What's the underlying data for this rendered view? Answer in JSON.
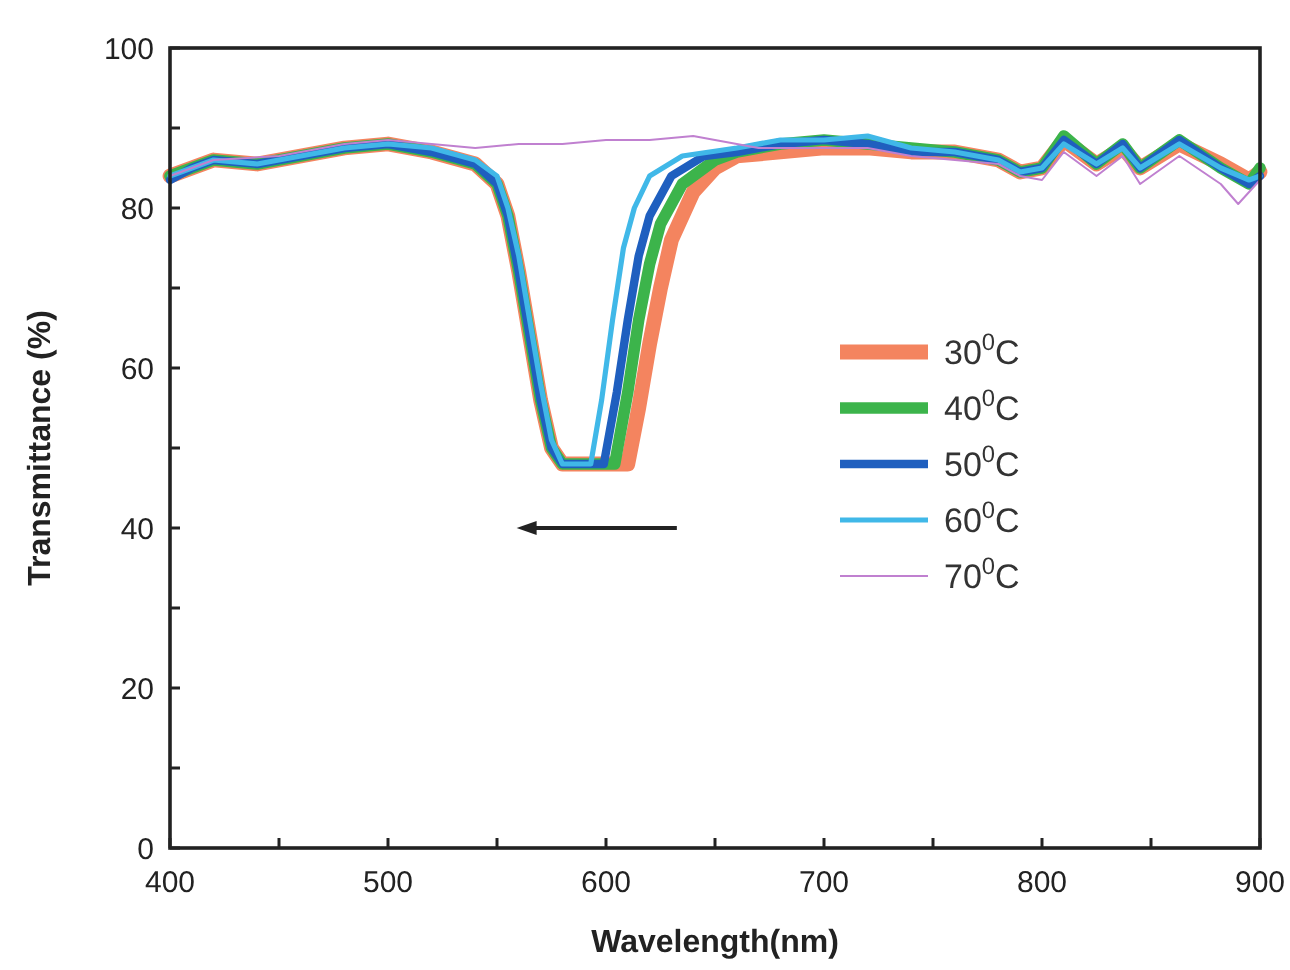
{
  "chart_data": {
    "type": "line",
    "xlabel": "Wavelength(nm)",
    "ylabel": "Transmittance (%)",
    "xlim": [
      400,
      900
    ],
    "ylim": [
      0,
      100
    ],
    "xticks": [
      400,
      {
        "value": 450,
        "label": null
      },
      500,
      {
        "value": 550,
        "label": null
      },
      600,
      {
        "value": 650,
        "label": null
      },
      700,
      {
        "value": 750,
        "label": null
      },
      800,
      {
        "value": 850,
        "label": null
      },
      900
    ],
    "yticks": [
      0,
      {
        "value": 10,
        "label": null
      },
      20,
      {
        "value": 30,
        "label": null
      },
      40,
      {
        "value": 50,
        "label": null
      },
      60,
      {
        "value": 70,
        "label": null
      },
      80,
      {
        "value": 90,
        "label": null
      },
      100
    ],
    "grid": false,
    "legend": "right",
    "line_style": "solid",
    "marker": "none",
    "series": [
      {
        "name": "30$^{0}$C",
        "color": "#f4845f",
        "x": [
          400,
          410,
          420,
          440,
          460,
          480,
          500,
          520,
          540,
          550,
          555,
          560,
          565,
          570,
          575,
          580,
          610,
          615,
          620,
          625,
          630,
          640,
          650,
          660,
          680,
          700,
          720,
          740,
          760,
          780,
          790,
          800,
          810,
          825,
          837,
          845,
          863,
          882,
          895,
          900
        ],
        "values": [
          84,
          85,
          86,
          85.5,
          86.5,
          87.5,
          88,
          87,
          85.5,
          83,
          79,
          72,
          64,
          56,
          50,
          48,
          48,
          55,
          63,
          70,
          76,
          82,
          85,
          86.5,
          87,
          87.5,
          87.5,
          87,
          87,
          86,
          84.5,
          85,
          88.5,
          85.5,
          87.5,
          85,
          88,
          85.5,
          83.5,
          84.5
        ]
      },
      {
        "name": "40$^{0}$C",
        "color": "#3cb44b",
        "x": [
          400,
          410,
          420,
          440,
          460,
          480,
          500,
          520,
          540,
          550,
          555,
          560,
          565,
          570,
          575,
          580,
          604,
          610,
          615,
          620,
          625,
          635,
          650,
          660,
          680,
          700,
          720,
          740,
          760,
          780,
          790,
          800,
          810,
          825,
          837,
          845,
          863,
          882,
          895,
          900
        ],
        "values": [
          84,
          85,
          86,
          85.5,
          86.5,
          87.5,
          88,
          87,
          85.5,
          83,
          79,
          72,
          64,
          56,
          50,
          48,
          48,
          57,
          66,
          73,
          78,
          83,
          86,
          87,
          88,
          88.5,
          88,
          87.5,
          87,
          86,
          84.5,
          85,
          89,
          85.5,
          88,
          85,
          88.5,
          85,
          83,
          85
        ]
      },
      {
        "name": "50$^{0}$C",
        "color": "#1f5fbf",
        "x": [
          400,
          410,
          420,
          440,
          460,
          480,
          500,
          520,
          540,
          550,
          555,
          560,
          565,
          570,
          575,
          580,
          599,
          605,
          610,
          615,
          620,
          630,
          645,
          660,
          680,
          700,
          720,
          740,
          760,
          780,
          790,
          800,
          810,
          825,
          837,
          845,
          863,
          882,
          895,
          900
        ],
        "values": [
          83.5,
          85,
          86,
          85.5,
          86.5,
          87.5,
          88,
          87,
          85.5,
          83,
          79,
          72,
          64,
          56,
          50,
          48,
          48,
          57,
          66,
          74,
          79,
          84,
          86.5,
          87,
          88,
          88.5,
          88,
          87,
          87,
          86,
          84.5,
          85,
          88.5,
          85.5,
          88,
          85,
          88.5,
          85,
          83,
          84
        ]
      },
      {
        "name": "60$^{0}$C",
        "color": "#40b8e8",
        "x": [
          400,
          410,
          420,
          440,
          460,
          480,
          500,
          520,
          540,
          550,
          555,
          560,
          565,
          570,
          575,
          580,
          593,
          598,
          603,
          608,
          613,
          620,
          635,
          660,
          680,
          700,
          720,
          740,
          760,
          780,
          790,
          800,
          810,
          825,
          837,
          845,
          863,
          882,
          895,
          900
        ],
        "values": [
          84,
          85,
          86,
          85.5,
          86.5,
          87.5,
          88,
          87.5,
          86,
          84,
          80,
          74,
          66,
          58,
          51,
          48,
          48,
          56,
          66,
          75,
          80,
          84,
          86.5,
          87.5,
          88.5,
          88.5,
          89,
          87.5,
          87,
          86,
          84.5,
          85,
          88,
          85.5,
          87.5,
          85,
          88,
          85,
          83.5,
          84
        ]
      },
      {
        "name": "70$^{0}$C",
        "color": "#c080d0",
        "x": [
          400,
          420,
          450,
          480,
          500,
          520,
          540,
          560,
          580,
          600,
          620,
          640,
          650,
          670,
          700,
          720,
          740,
          760,
          780,
          790,
          800,
          810,
          825,
          837,
          845,
          863,
          882,
          890,
          900
        ],
        "values": [
          84,
          86,
          86.5,
          88,
          88.5,
          88,
          87.5,
          88,
          88,
          88.5,
          88.5,
          89,
          88.5,
          87.5,
          87.5,
          87.5,
          86.5,
          86,
          85.5,
          84,
          83.5,
          87,
          84,
          86.5,
          83,
          86.5,
          83,
          80.5,
          83.5
        ]
      }
    ]
  }
}
